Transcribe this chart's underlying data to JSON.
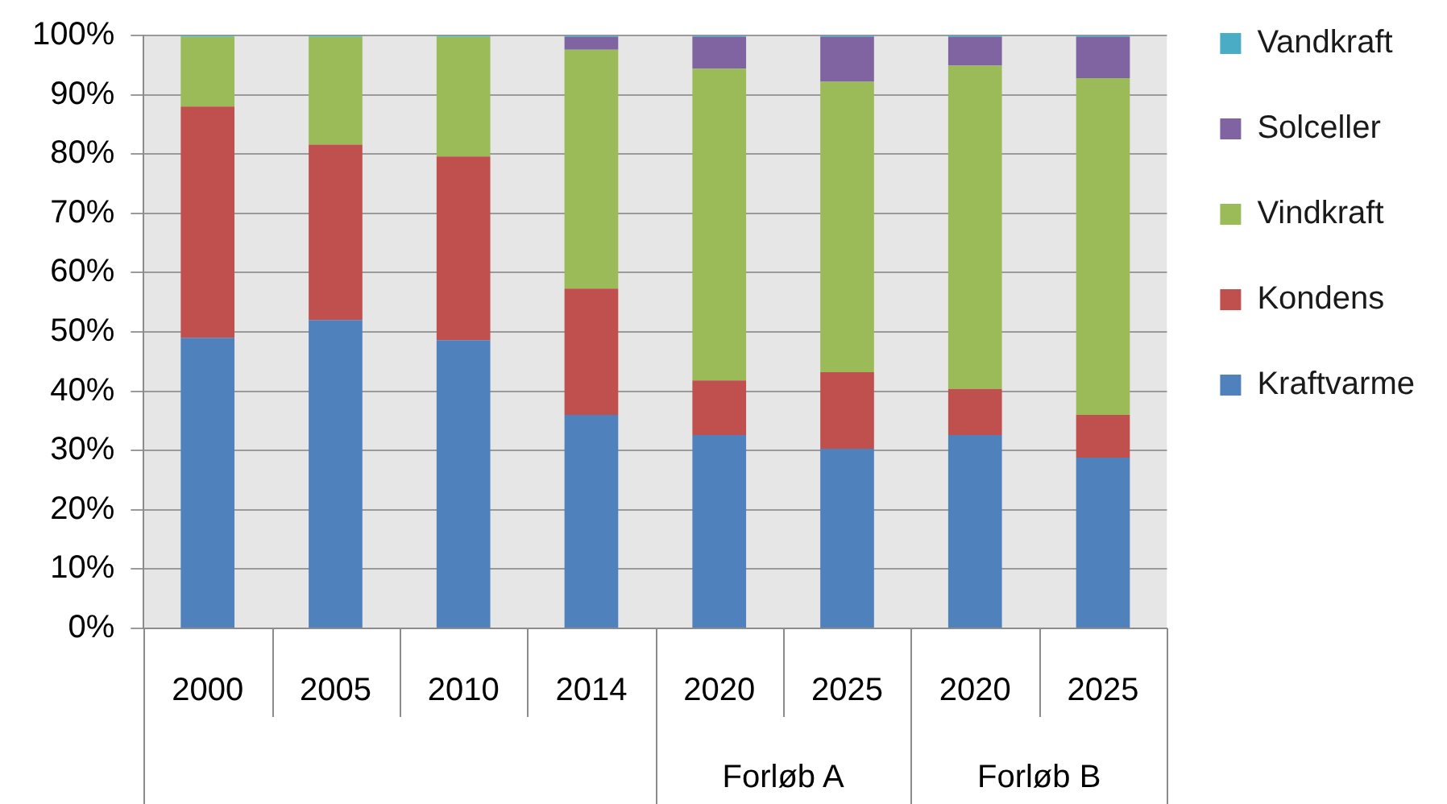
{
  "chart_data": {
    "type": "bar",
    "stacked": true,
    "categories": [
      "2000",
      "2005",
      "2010",
      "2014",
      "2020",
      "2025",
      "2020",
      "2025"
    ],
    "series": [
      {
        "name": "Kraftvarme",
        "color": "#4f81bd",
        "values": [
          49,
          52,
          48.6,
          36,
          32.6,
          30.3,
          32.6,
          28.8
        ]
      },
      {
        "name": "Kondens",
        "color": "#c0504d",
        "values": [
          39,
          29.6,
          31,
          21.3,
          9.2,
          12.9,
          7.8,
          7.2
        ]
      },
      {
        "name": "Vindkraft",
        "color": "#9bbb59",
        "values": [
          11.8,
          18.2,
          20.2,
          40.3,
          52.6,
          49,
          54.5,
          56.8
        ]
      },
      {
        "name": "Solceller",
        "color": "#8064a2",
        "values": [
          0,
          0,
          0,
          2.2,
          5.4,
          7.6,
          4.9,
          7
        ]
      },
      {
        "name": "Vandkraft",
        "color": "#4bacc6",
        "values": [
          0.2,
          0.2,
          0.2,
          0.2,
          0.2,
          0.2,
          0.2,
          0.2
        ]
      }
    ],
    "ylim": [
      0,
      100
    ],
    "yticks": [
      {
        "value": 0,
        "label": "0%"
      },
      {
        "value": 10,
        "label": "10%"
      },
      {
        "value": 20,
        "label": "20%"
      },
      {
        "value": 30,
        "label": "30%"
      },
      {
        "value": 40,
        "label": "40%"
      },
      {
        "value": 50,
        "label": "50%"
      },
      {
        "value": 60,
        "label": "60%"
      },
      {
        "value": 70,
        "label": "70%"
      },
      {
        "value": 80,
        "label": "80%"
      },
      {
        "value": 90,
        "label": "90%"
      },
      {
        "value": 100,
        "label": "100%"
      }
    ],
    "grid": "y",
    "legend": "right",
    "annotations": [
      "Forløb A",
      "Forløb B"
    ]
  }
}
